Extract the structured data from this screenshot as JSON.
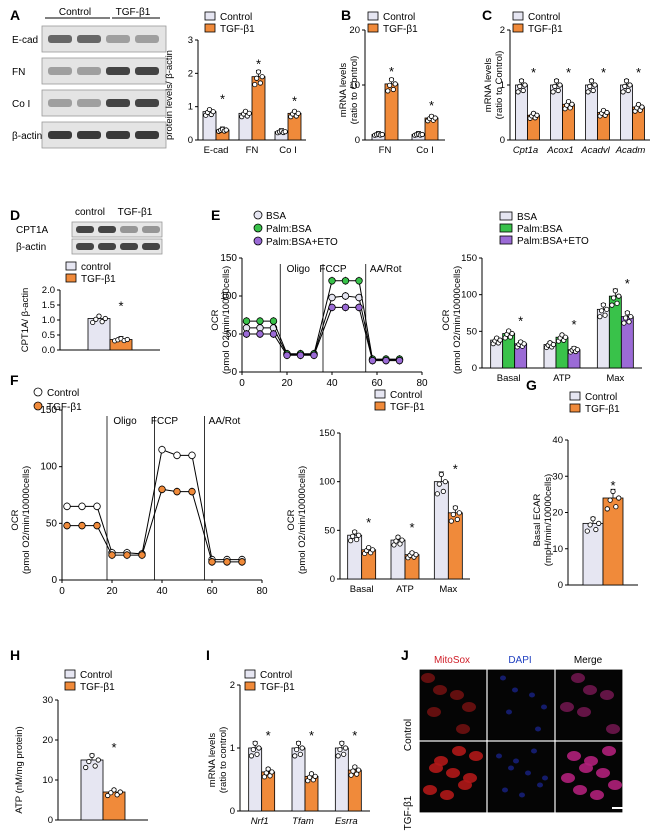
{
  "colors": {
    "control": "#e6e6f2",
    "tgf": "#f08a3a",
    "bsa": "#e6e6f2",
    "palm": "#39c24a",
    "eto": "#9b6bd6",
    "dot": "#ffffff",
    "grid": "#000000"
  },
  "panels": {
    "A": "A",
    "B": "B",
    "C": "C",
    "D": "D",
    "E": "E",
    "F": "F",
    "G": "G",
    "H": "H",
    "I": "I",
    "J": "J"
  },
  "legend": {
    "control": "Control",
    "tgf": "TGF-β1",
    "control_lc": "control",
    "bsa": "BSA",
    "palm": "Palm:BSA",
    "eto": "Palm:BSA+ETO"
  },
  "star": "*",
  "blotA": {
    "headers": [
      "Control",
      "TGF-β1"
    ],
    "rows": [
      "E-cad",
      "FN",
      "Co I",
      "β-actin"
    ]
  },
  "blotD": {
    "headers": [
      "control",
      "TGF-β1"
    ],
    "rows": [
      "CPT1A",
      "β-actin"
    ]
  },
  "imageJ": {
    "cols": [
      "MitoSox",
      "DAPI",
      "Merge"
    ],
    "rows": [
      "Control",
      "TGF-β1"
    ]
  },
  "chart_data": [
    {
      "id": "A",
      "type": "bar",
      "ylabel": "protein levels/ β-actin",
      "ylim": [
        0,
        3
      ],
      "yticks": [
        "0",
        "1",
        "2",
        "3"
      ],
      "categories": [
        "E-cad",
        "FN",
        "Co I"
      ],
      "series": [
        {
          "name": "Control",
          "values": [
            0.85,
            0.8,
            0.25
          ]
        },
        {
          "name": "TGF-β1",
          "values": [
            0.3,
            1.9,
            0.8
          ]
        }
      ],
      "sig": [
        true,
        true,
        true
      ]
    },
    {
      "id": "B",
      "type": "bar",
      "ylabel": "mRNA levels\n(ratio to Control)",
      "ylim": [
        0,
        20
      ],
      "yticks": [
        "0",
        "10",
        "20"
      ],
      "categories": [
        "FN",
        "Co I"
      ],
      "series": [
        {
          "name": "Control",
          "values": [
            1,
            1
          ]
        },
        {
          "name": "TGF-β1",
          "values": [
            10.2,
            4
          ]
        }
      ],
      "sig": [
        true,
        true
      ]
    },
    {
      "id": "C",
      "type": "bar",
      "ylabel": "mRNA levels\n(ratio to Control)",
      "ylim": [
        0,
        2
      ],
      "yticks": [
        "0",
        "1",
        "2"
      ],
      "categories": [
        "Cpt1a",
        "Acox1",
        "Acadvl",
        "Acadm"
      ],
      "italic": true,
      "series": [
        {
          "name": "Control",
          "values": [
            1,
            1,
            1,
            1
          ]
        },
        {
          "name": "TGF-β1",
          "values": [
            0.45,
            0.65,
            0.5,
            0.6
          ]
        }
      ],
      "sig": [
        true,
        true,
        true,
        true
      ]
    },
    {
      "id": "D",
      "type": "bar",
      "ylabel": "CPT1A/ β-actin",
      "ylim": [
        0,
        2
      ],
      "yticks": [
        "0.0",
        "0.5",
        "1.0",
        "1.5",
        "2.0"
      ],
      "categories": [
        ""
      ],
      "series": [
        {
          "name": "control",
          "values": [
            1.05
          ]
        },
        {
          "name": "TGF-β1",
          "values": [
            0.35
          ]
        }
      ],
      "sig": [
        true
      ]
    },
    {
      "id": "E-line",
      "type": "line",
      "ylabel": "OCR\n(pmol O2/min/10000cells)",
      "xlim": [
        0,
        80
      ],
      "ylim": [
        0,
        150
      ],
      "xticks": [
        "0",
        "20",
        "40",
        "60",
        "80"
      ],
      "yticks": [
        "0",
        "50",
        "100",
        "150"
      ],
      "annotations": [
        "Oligo",
        "FCCP",
        "AA/Rot"
      ],
      "vlines": [
        17,
        36,
        55
      ],
      "x": [
        2,
        8,
        14,
        20,
        26,
        32,
        40,
        46,
        52,
        58,
        64,
        70
      ],
      "series": [
        {
          "name": "BSA",
          "values": [
            58,
            58,
            58,
            23,
            23,
            23,
            98,
            100,
            98,
            16,
            16,
            16
          ]
        },
        {
          "name": "Palm:BSA",
          "values": [
            67,
            67,
            67,
            24,
            24,
            24,
            120,
            120,
            120,
            17,
            17,
            17
          ]
        },
        {
          "name": "Palm:BSA+ETO",
          "values": [
            50,
            50,
            50,
            22,
            22,
            22,
            85,
            85,
            85,
            15,
            15,
            15
          ]
        }
      ]
    },
    {
      "id": "E-bar",
      "type": "bar",
      "ylabel": "OCR\n(pmol O2/min/10000cells)",
      "ylim": [
        0,
        150
      ],
      "yticks": [
        "0",
        "50",
        "100",
        "150"
      ],
      "categories": [
        "Basal",
        "ATP",
        "Max"
      ],
      "series": [
        {
          "name": "BSA",
          "values": [
            38,
            32,
            80
          ]
        },
        {
          "name": "Palm:BSA",
          "values": [
            47,
            42,
            98
          ]
        },
        {
          "name": "Palm:BSA+ETO",
          "values": [
            33,
            25,
            70
          ]
        }
      ],
      "sig": [
        true,
        true,
        true
      ]
    },
    {
      "id": "F-line",
      "type": "line",
      "ylabel": "OCR\n(pmol O2/min/10000cells)",
      "xlim": [
        0,
        80
      ],
      "ylim": [
        0,
        150
      ],
      "xticks": [
        "0",
        "20",
        "40",
        "60",
        "80"
      ],
      "yticks": [
        "0",
        "50",
        "100",
        "150"
      ],
      "annotations": [
        "Oligo",
        "FCCP",
        "AA/Rot"
      ],
      "vlines": [
        18,
        37,
        57
      ],
      "x": [
        2,
        8,
        14,
        20,
        26,
        32,
        40,
        46,
        52,
        60,
        66,
        72
      ],
      "series": [
        {
          "name": "Control",
          "values": [
            65,
            65,
            65,
            24,
            24,
            23,
            115,
            110,
            110,
            18,
            18,
            18
          ]
        },
        {
          "name": "TGF-β1",
          "values": [
            48,
            48,
            48,
            22,
            22,
            22,
            80,
            78,
            78,
            16,
            16,
            16
          ]
        }
      ]
    },
    {
      "id": "F-bar",
      "type": "bar",
      "ylabel": "OCR\n(pmol O2/min/10000cells)",
      "ylim": [
        0,
        150
      ],
      "yticks": [
        "0",
        "50",
        "100",
        "150"
      ],
      "categories": [
        "Basal",
        "ATP",
        "Max"
      ],
      "series": [
        {
          "name": "Control",
          "values": [
            45,
            40,
            100
          ]
        },
        {
          "name": "TGF-β1",
          "values": [
            30,
            25,
            68
          ]
        }
      ],
      "sig": [
        true,
        true,
        true
      ]
    },
    {
      "id": "G",
      "type": "bar",
      "ylabel": "Basal ECAR\n(mpH/min/10000cells)",
      "ylim": [
        0,
        40
      ],
      "yticks": [
        "0",
        "10",
        "20",
        "30",
        "40"
      ],
      "categories": [
        ""
      ],
      "series": [
        {
          "name": "Control",
          "values": [
            17
          ]
        },
        {
          "name": "TGF-β1",
          "values": [
            24
          ]
        }
      ],
      "sig": [
        true
      ]
    },
    {
      "id": "H",
      "type": "bar",
      "ylabel": "ATP (nM/mg protein)",
      "ylim": [
        0,
        30
      ],
      "yticks": [
        "0",
        "10",
        "20",
        "30"
      ],
      "categories": [
        ""
      ],
      "series": [
        {
          "name": "Control",
          "values": [
            15
          ]
        },
        {
          "name": "TGF-β1",
          "values": [
            7
          ]
        }
      ],
      "sig": [
        true
      ]
    },
    {
      "id": "I",
      "type": "bar",
      "ylabel": "mRNA levels\n(ratio to control)",
      "ylim": [
        0,
        2
      ],
      "yticks": [
        "0",
        "1",
        "2"
      ],
      "categories": [
        "Nrf1",
        "Tfam",
        "Esrra"
      ],
      "italic": true,
      "series": [
        {
          "name": "Control",
          "values": [
            1,
            1,
            1
          ]
        },
        {
          "name": "TGF-β1",
          "values": [
            0.62,
            0.55,
            0.65
          ]
        }
      ],
      "sig": [
        true,
        true,
        true
      ]
    }
  ]
}
